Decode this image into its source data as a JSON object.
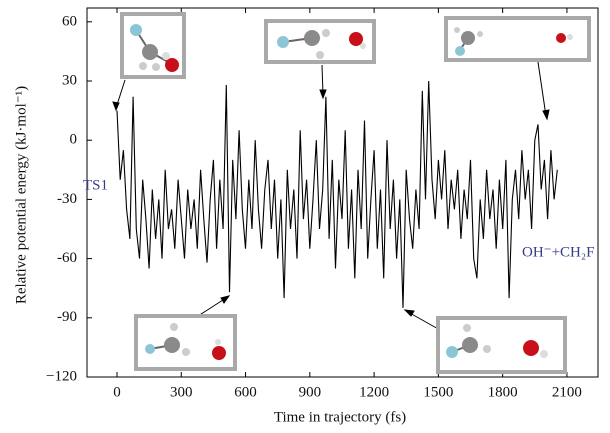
{
  "chart_data": {
    "type": "line",
    "x_label": "Time in trajectory (fs)",
    "y_label": "Relative potential energy (kJ·mol⁻¹)",
    "annotations": [
      "TS1",
      "OH⁻+CH₂F"
    ],
    "xlim": [
      -140,
      2245
    ],
    "ylim": [
      -120,
      67
    ],
    "xticks": [
      0,
      300,
      600,
      900,
      1200,
      1500,
      1800,
      2100
    ],
    "yticks": [
      {
        "value": -120,
        "label": "−120"
      },
      -90,
      -60,
      -30,
      0,
      30,
      60
    ],
    "x": [
      0,
      15,
      30,
      45,
      60,
      75,
      90,
      105,
      120,
      135,
      150,
      165,
      180,
      195,
      210,
      225,
      240,
      255,
      270,
      285,
      300,
      315,
      330,
      345,
      360,
      375,
      390,
      405,
      420,
      435,
      450,
      465,
      480,
      495,
      510,
      525,
      540,
      555,
      570,
      585,
      600,
      615,
      630,
      645,
      660,
      675,
      690,
      705,
      720,
      735,
      750,
      765,
      780,
      795,
      810,
      825,
      840,
      855,
      870,
      885,
      900,
      915,
      930,
      945,
      960,
      975,
      990,
      1005,
      1020,
      1035,
      1050,
      1065,
      1080,
      1095,
      1110,
      1125,
      1140,
      1155,
      1170,
      1185,
      1200,
      1215,
      1230,
      1245,
      1260,
      1275,
      1290,
      1305,
      1320,
      1335,
      1350,
      1365,
      1380,
      1395,
      1410,
      1425,
      1440,
      1455,
      1470,
      1485,
      1500,
      1515,
      1530,
      1545,
      1560,
      1575,
      1590,
      1605,
      1620,
      1635,
      1650,
      1665,
      1680,
      1695,
      1710,
      1725,
      1740,
      1755,
      1770,
      1785,
      1800,
      1815,
      1830,
      1845,
      1860,
      1875,
      1890,
      1905,
      1920,
      1935,
      1950,
      1965,
      1980,
      1995,
      2010,
      2025,
      2040,
      2055
    ],
    "series": [
      {
        "color": "#000000",
        "values": [
          15,
          -20,
          -5,
          -35,
          -50,
          22,
          -45,
          -60,
          -20,
          -40,
          -65,
          -25,
          -50,
          -30,
          -60,
          -15,
          -45,
          -35,
          -55,
          -20,
          -40,
          -60,
          -25,
          -45,
          -30,
          -55,
          -15,
          -40,
          -62,
          -30,
          -10,
          -55,
          -20,
          -45,
          28,
          -77,
          -10,
          -40,
          5,
          -35,
          -55,
          -20,
          -45,
          0,
          -35,
          -55,
          -25,
          -10,
          -45,
          -20,
          -60,
          -30,
          -80,
          -15,
          -45,
          -25,
          -60,
          5,
          -40,
          -20,
          -55,
          -30,
          0,
          -45,
          -25,
          22,
          -50,
          -10,
          -65,
          -20,
          -40,
          5,
          -55,
          -25,
          -70,
          -15,
          -45,
          10,
          -60,
          -30,
          -5,
          -55,
          -25,
          -70,
          0,
          -45,
          -20,
          -60,
          -30,
          -85,
          -15,
          -40,
          -55,
          -25,
          -45,
          25,
          -30,
          30,
          -20,
          -40,
          -10,
          -30,
          -5,
          -45,
          -20,
          -35,
          -15,
          -50,
          -25,
          -40,
          -10,
          -60,
          -70,
          -30,
          -50,
          -15,
          -40,
          -25,
          -55,
          -20,
          -45,
          -10,
          -80,
          -30,
          -15,
          -40,
          -5,
          -30,
          -15,
          -45,
          0,
          8,
          -25,
          -10,
          -40,
          -5,
          -30,
          -15
        ]
      }
    ]
  }
}
